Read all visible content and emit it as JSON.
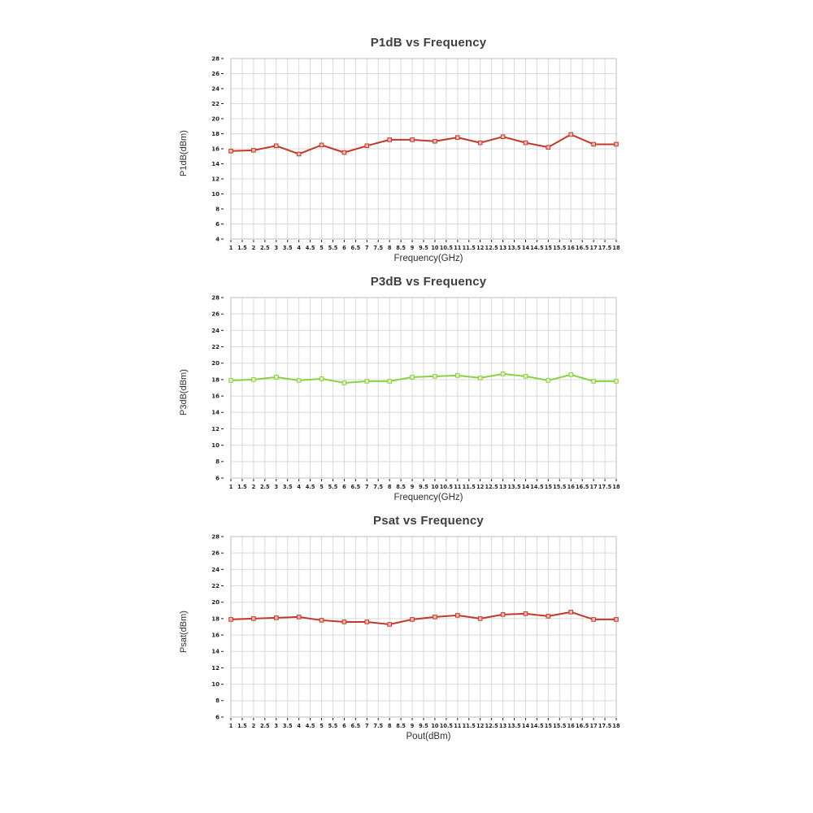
{
  "page": {
    "background": "#ffffff"
  },
  "chart_data": [
    {
      "type": "line",
      "title": "P1dB vs Frequency",
      "xlabel": "Frequency(GHz)",
      "ylabel": "P1dB(dBm)",
      "legend": "none",
      "grid": true,
      "grid_color": "#d9d9d9",
      "border_color": "#bdbdbd",
      "series_color": "#c0392b",
      "marker_fill": "#f0b6b0",
      "xlim": [
        1,
        18
      ],
      "xtick_step": 0.5,
      "ylim": [
        4,
        28
      ],
      "ytick_step": 2,
      "x": [
        1,
        2,
        3,
        4,
        5,
        6,
        7,
        8,
        9,
        10,
        11,
        12,
        13,
        14,
        15,
        16,
        17,
        18
      ],
      "y": [
        15.7,
        15.8,
        16.4,
        15.3,
        16.5,
        15.5,
        16.4,
        17.2,
        17.2,
        17.0,
        17.5,
        16.8,
        17.6,
        16.8,
        16.2,
        17.9,
        16.6,
        16.6
      ]
    },
    {
      "type": "line",
      "title": "P3dB vs Frequency",
      "xlabel": "Frequency(GHz)",
      "ylabel": "P3dB(dBm)",
      "legend": "none",
      "grid": true,
      "grid_color": "#d9d9d9",
      "border_color": "#bdbdbd",
      "series_color": "#8ccf44",
      "marker_fill": "#ddf2c0",
      "xlim": [
        1,
        18
      ],
      "xtick_step": 0.5,
      "ylim": [
        6,
        28
      ],
      "ytick_step": 2,
      "x": [
        1,
        2,
        3,
        4,
        5,
        6,
        7,
        8,
        9,
        10,
        11,
        12,
        13,
        14,
        15,
        16,
        17,
        18
      ],
      "y": [
        17.9,
        18.0,
        18.3,
        17.9,
        18.1,
        17.6,
        17.8,
        17.8,
        18.3,
        18.4,
        18.5,
        18.2,
        18.7,
        18.4,
        17.9,
        18.6,
        17.8,
        17.8
      ]
    },
    {
      "type": "line",
      "title": "Psat vs Frequency",
      "xlabel": "Pout(dBm)",
      "ylabel": "Psat(dBm)",
      "legend": "none",
      "grid": true,
      "grid_color": "#d9d9d9",
      "border_color": "#bdbdbd",
      "series_color": "#c0392b",
      "marker_fill": "#f0b6b0",
      "xlim": [
        1,
        18
      ],
      "xtick_step": 0.5,
      "ylim": [
        6,
        28
      ],
      "ytick_step": 2,
      "x": [
        1,
        2,
        3,
        4,
        5,
        6,
        7,
        8,
        9,
        10,
        11,
        12,
        13,
        14,
        15,
        16,
        17,
        18
      ],
      "y": [
        17.9,
        18.0,
        18.1,
        18.2,
        17.8,
        17.6,
        17.6,
        17.3,
        17.9,
        18.2,
        18.4,
        18.0,
        18.5,
        18.6,
        18.3,
        18.8,
        17.9,
        17.9
      ]
    }
  ]
}
